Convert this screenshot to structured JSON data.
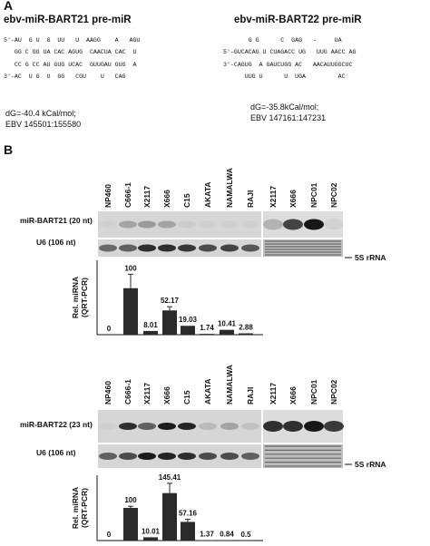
{
  "panel_a": {
    "label": "A",
    "left": {
      "title": "ebv-miR-BART21 pre-miR",
      "structure": [
        "5'-AU  G U  G  UU   U  AAGG    A   AGU",
        "   GG C GG UA CAC AGUG  CAACUA CAC  U",
        "   CC G CC AU GUG UCAC  GUUGAU GUG  A",
        "3'-AC  U G  U  GG   CGU    U   CAG"
      ],
      "dg": "dG=-40.4 kCal/mol;",
      "coords": "EBV 145501:155580"
    },
    "right": {
      "title": "ebv-miR-BART22 pre-miR",
      "structure": [
        "       G G      C  GAG   -     UA",
        "5'-GUCACAG U CUAGACC UG   UUG AACC AG",
        "3'-CAGUG  A GAUCUGG AC   AACAUUGGCUC",
        "      UUG U      U  UGA         AC"
      ],
      "dg": "dG=-35.8kCal/mol;",
      "coords": "EBV 147161:147231"
    }
  },
  "panel_b": {
    "label": "B",
    "blot_1": {
      "lanes_left": [
        "NP460",
        "C666-1",
        "X2117",
        "X666",
        "C15",
        "AKATA",
        "NAMALWA",
        "RAJI"
      ],
      "lanes_right": [
        "X2117",
        "X666",
        "NPC01",
        "NPC02"
      ],
      "row_1": "miR-BART21 (20 nt)",
      "row_2": "U6 (106 nt)",
      "marker": "5S rRNA"
    },
    "blot_2": {
      "lanes_left": [
        "NP460",
        "C666-1",
        "X2117",
        "X666",
        "C15",
        "AKATA",
        "NAMALWA",
        "RAJI"
      ],
      "lanes_right": [
        "X2117",
        "X666",
        "NPC01",
        "NPC02"
      ],
      "row_1": "miR-BART22 (23 nt)",
      "row_2": "U6 (106 nt)",
      "marker": "5S rRNA"
    }
  },
  "chart_data": [
    {
      "type": "bar",
      "y_label": [
        "Rel. miRNA",
        "(QRT-PCR)"
      ],
      "categories": [
        null,
        null,
        null,
        null,
        null,
        null,
        null,
        null
      ],
      "values": [
        0,
        100,
        8.01,
        52.17,
        19.03,
        1.74,
        10.41,
        2.88
      ],
      "errors": [
        0,
        30,
        0,
        8,
        0,
        0,
        0,
        0
      ],
      "ylim": [
        0,
        160
      ],
      "color": "#2a2a2a"
    },
    {
      "type": "bar",
      "y_label": [
        "Rel. miRNA",
        "(QRT-PCR)"
      ],
      "categories": [
        null,
        null,
        null,
        null,
        null,
        null,
        null,
        null
      ],
      "values": [
        0,
        100,
        10.01,
        145.41,
        57.16,
        1.37,
        0.84,
        0.5
      ],
      "errors": [
        0,
        5,
        0,
        30,
        8,
        0,
        0,
        0
      ],
      "ylim": [
        0,
        200
      ],
      "color": "#2a2a2a"
    }
  ]
}
